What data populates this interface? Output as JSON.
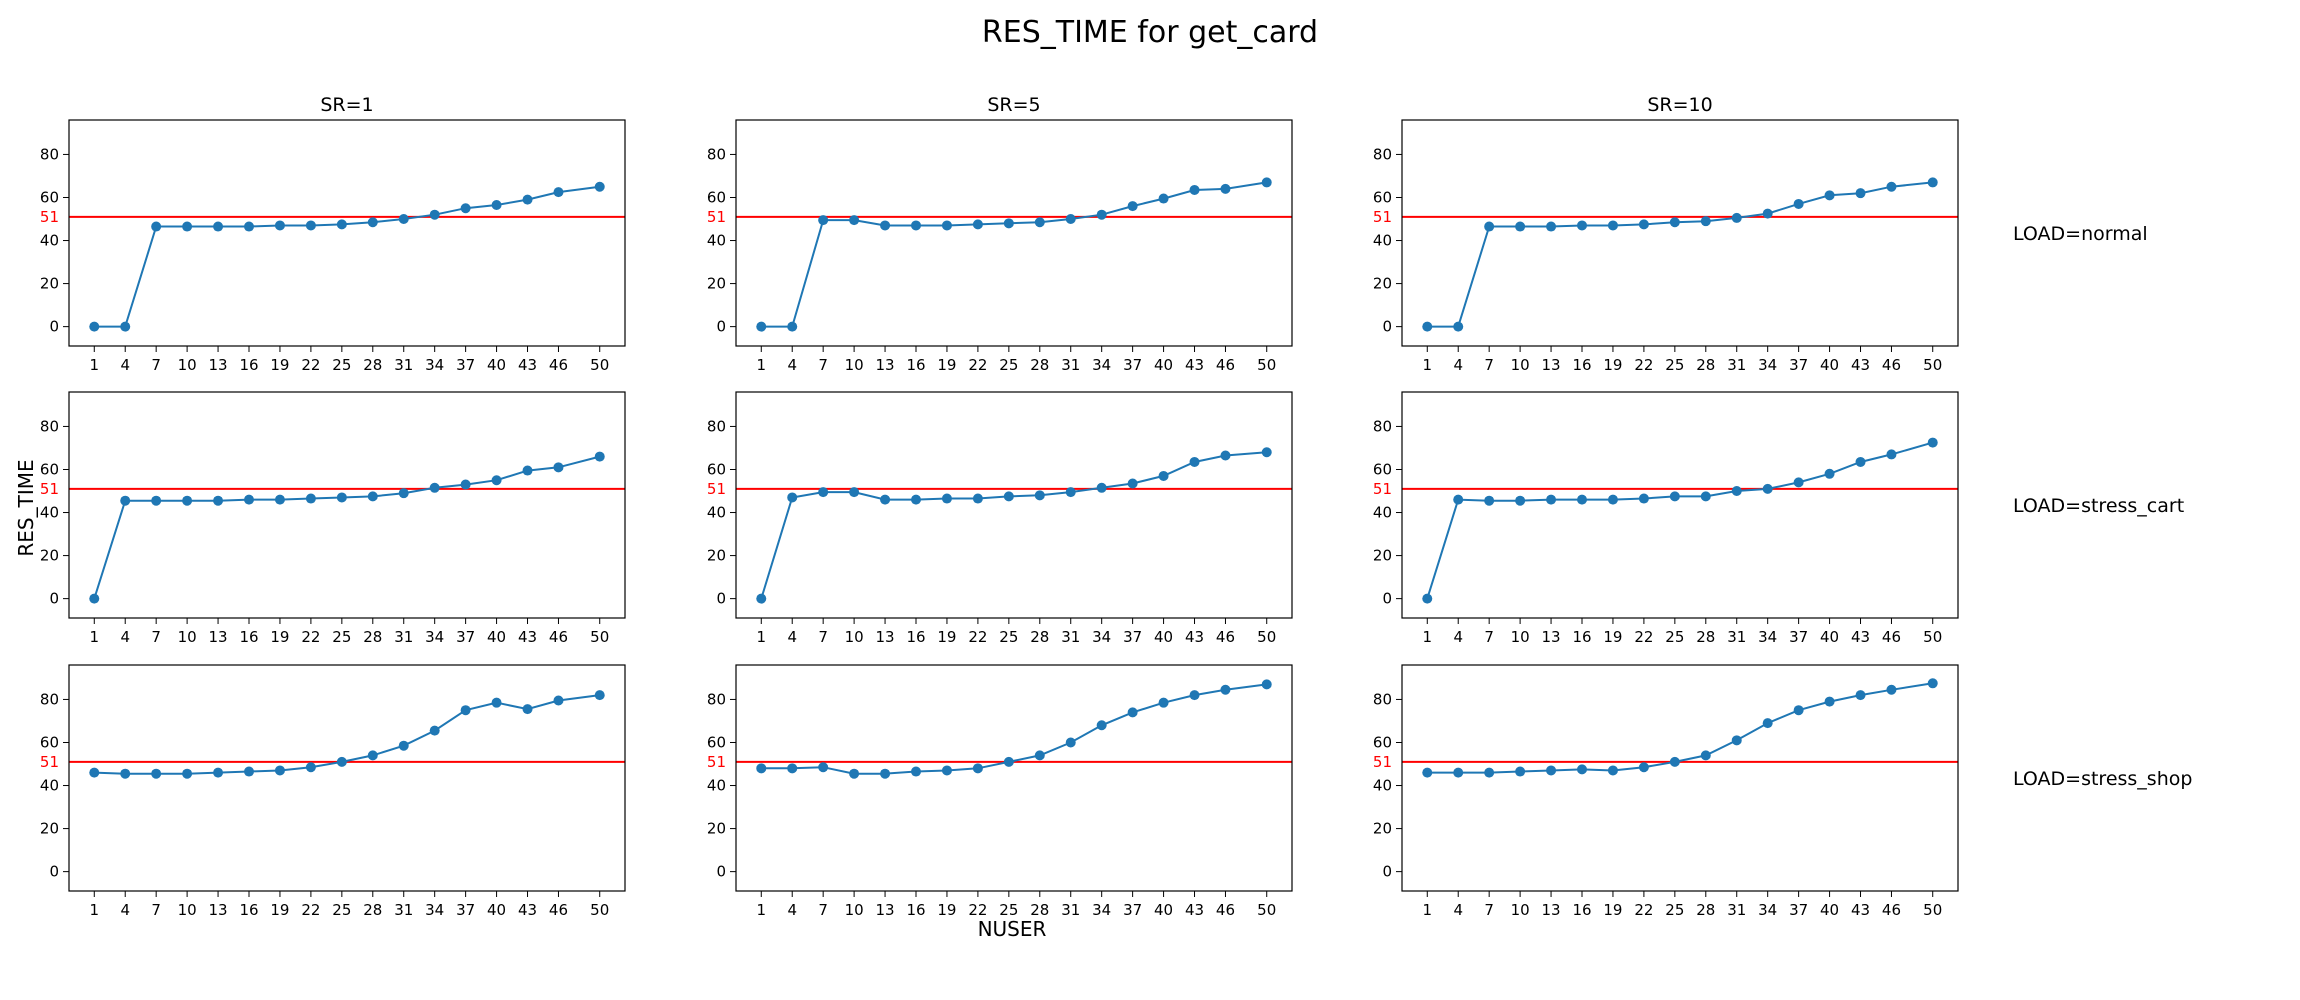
{
  "title": "RES_TIME for get_card",
  "xlabel": "NUSER",
  "ylabel": "RES_TIME",
  "col_titles": [
    "SR=1",
    "SR=5",
    "SR=10"
  ],
  "row_labels": [
    "LOAD=normal",
    "LOAD=stress_cart",
    "LOAD=stress_shop"
  ],
  "colors": {
    "series": "#1f77b4",
    "threshold": "#ff0000",
    "axis": "#000000"
  },
  "chart_data": {
    "type": "line",
    "x": [
      1,
      4,
      7,
      10,
      13,
      16,
      19,
      22,
      25,
      28,
      31,
      34,
      37,
      40,
      43,
      46,
      50
    ],
    "xticks": [
      1,
      4,
      7,
      10,
      13,
      16,
      19,
      22,
      25,
      28,
      31,
      34,
      37,
      40,
      43,
      46,
      50
    ],
    "yticks": [
      0,
      20,
      40,
      60,
      80
    ],
    "ylim": [
      -9,
      96
    ],
    "threshold": {
      "value": 51,
      "label": "51"
    },
    "grid": false,
    "panels": [
      {
        "row": 0,
        "col": 0,
        "values": [
          0,
          0,
          46.5,
          46.5,
          46.5,
          46.5,
          47,
          47,
          47.5,
          48.5,
          50,
          52,
          55,
          56.5,
          59,
          62.5,
          65
        ]
      },
      {
        "row": 0,
        "col": 1,
        "values": [
          0,
          0,
          49.5,
          49.5,
          47,
          47,
          47,
          47.5,
          48,
          48.5,
          50,
          52,
          56,
          59.5,
          63.5,
          64,
          67
        ]
      },
      {
        "row": 0,
        "col": 2,
        "values": [
          0,
          0,
          46.5,
          46.5,
          46.5,
          47,
          47,
          47.5,
          48.5,
          49,
          50.5,
          52.5,
          57,
          61,
          62,
          65,
          67
        ]
      },
      {
        "row": 1,
        "col": 0,
        "values": [
          0,
          45.5,
          45.5,
          45.5,
          45.5,
          46,
          46,
          46.5,
          47,
          47.5,
          49,
          51.5,
          53,
          55,
          59.5,
          61,
          66
        ]
      },
      {
        "row": 1,
        "col": 1,
        "values": [
          0,
          47,
          49.5,
          49.5,
          46,
          46,
          46.5,
          46.5,
          47.5,
          48,
          49.5,
          51.5,
          53.5,
          57,
          63.5,
          66.5,
          68
        ]
      },
      {
        "row": 1,
        "col": 2,
        "values": [
          0,
          46,
          45.5,
          45.5,
          46,
          46,
          46,
          46.5,
          47.5,
          47.5,
          50,
          51,
          54,
          58,
          63.5,
          67,
          72.5
        ]
      },
      {
        "row": 2,
        "col": 0,
        "values": [
          46,
          45.5,
          45.5,
          45.5,
          46,
          46.5,
          47,
          48.5,
          51,
          54,
          58.5,
          65.5,
          75,
          78.5,
          75.5,
          79.5,
          82
        ]
      },
      {
        "row": 2,
        "col": 1,
        "values": [
          48,
          48,
          48.5,
          45.5,
          45.5,
          46.5,
          47,
          48,
          51,
          54,
          60,
          68,
          74,
          78.5,
          82,
          84.5,
          87
        ]
      },
      {
        "row": 2,
        "col": 2,
        "values": [
          46,
          46,
          46,
          46.5,
          47,
          47.5,
          47,
          48.5,
          51,
          54,
          61,
          69,
          75,
          79,
          82,
          84.5,
          87.5
        ]
      }
    ]
  }
}
